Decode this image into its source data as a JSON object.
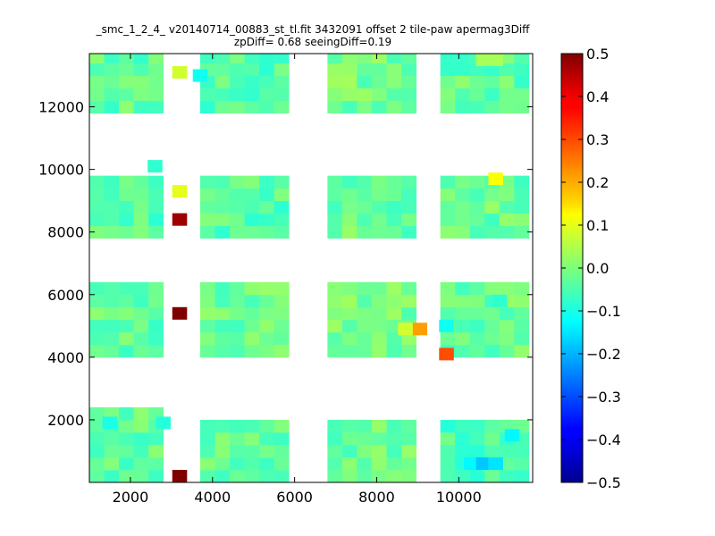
{
  "title_lines": [
    "_smc_1_2_4_ v20140714_00883_st_tl.fit 3432091 offset 2 tile-paw apermag3Diff",
    "zpDiff= 0.68 seeingDiff=0.19"
  ],
  "chart_data": {
    "type": "heatmap",
    "xlim": [
      1000,
      11800
    ],
    "ylim": [
      0,
      13700
    ],
    "xticks": [
      2000,
      4000,
      6000,
      8000,
      10000
    ],
    "yticks": [
      2000,
      4000,
      6000,
      8000,
      10000,
      12000
    ],
    "cell_size": [
      360,
      400
    ],
    "colorbar": {
      "colormap": "jet",
      "range": [
        -0.5,
        0.5
      ],
      "ticks": [
        0.5,
        0.4,
        0.3,
        0.2,
        0.1,
        0.0,
        -0.1,
        -0.2,
        -0.3,
        -0.4,
        -0.5
      ],
      "tick_labels": [
        "0.5",
        "0.4",
        "0.3",
        "0.2",
        "0.1",
        "0.0",
        "−0.1",
        "−0.2",
        "−0.3",
        "−0.4",
        "−0.5"
      ]
    },
    "blocks": [
      {
        "x0": 1000,
        "cols": 5,
        "y0": 0,
        "rows": 6,
        "value": -0.03
      },
      {
        "x0": 1000,
        "cols": 5,
        "y0": 4000,
        "rows": 6,
        "value": -0.03
      },
      {
        "x0": 1000,
        "cols": 5,
        "y0": 7800,
        "rows": 5,
        "value": -0.04
      },
      {
        "x0": 1000,
        "cols": 5,
        "y0": 11800,
        "rows": 5,
        "value": -0.03
      },
      {
        "x0": 3700,
        "cols": 6,
        "y0": 0,
        "rows": 5,
        "value": -0.02
      },
      {
        "x0": 3700,
        "cols": 6,
        "y0": 4000,
        "rows": 6,
        "value": -0.02
      },
      {
        "x0": 3700,
        "cols": 6,
        "y0": 7800,
        "rows": 5,
        "value": -0.04
      },
      {
        "x0": 3700,
        "cols": 6,
        "y0": 11800,
        "rows": 5,
        "value": -0.04
      },
      {
        "x0": 6800,
        "cols": 6,
        "y0": 0,
        "rows": 5,
        "value": -0.02
      },
      {
        "x0": 6800,
        "cols": 6,
        "y0": 4000,
        "rows": 6,
        "value": -0.01
      },
      {
        "x0": 6800,
        "cols": 6,
        "y0": 7800,
        "rows": 5,
        "value": -0.02
      },
      {
        "x0": 6800,
        "cols": 6,
        "y0": 11800,
        "rows": 6,
        "value": -0.01
      },
      {
        "x0": 9550,
        "cols": 6,
        "y0": 0,
        "rows": 5,
        "value": -0.05
      },
      {
        "x0": 9550,
        "cols": 6,
        "y0": 4000,
        "rows": 6,
        "value": -0.02
      },
      {
        "x0": 9550,
        "cols": 6,
        "y0": 7800,
        "rows": 5,
        "value": -0.02
      },
      {
        "x0": 9550,
        "cols": 6,
        "y0": 11800,
        "rows": 5,
        "value": -0.03
      }
    ],
    "notable_cells": [
      {
        "x": 3200,
        "y": 200,
        "value": 0.5
      },
      {
        "x": 3200,
        "y": 5400,
        "value": 0.5
      },
      {
        "x": 3200,
        "y": 8400,
        "value": 0.47
      },
      {
        "x": 3200,
        "y": 9300,
        "value": 0.1
      },
      {
        "x": 3200,
        "y": 13100,
        "value": 0.08
      },
      {
        "x": 2600,
        "y": 10100,
        "value": -0.08
      },
      {
        "x": 9700,
        "y": 4100,
        "value": 0.3
      },
      {
        "x": 9050,
        "y": 4900,
        "value": 0.22
      },
      {
        "x": 8700,
        "y": 4900,
        "value": 0.08
      },
      {
        "x": 10900,
        "y": 9700,
        "value": 0.12
      },
      {
        "x": 10600,
        "y": 13500,
        "value": 0.04
      },
      {
        "x": 10900,
        "y": 13500,
        "value": 0.04
      },
      {
        "x": 10300,
        "y": 600,
        "value": -0.13
      },
      {
        "x": 10600,
        "y": 600,
        "value": -0.18
      },
      {
        "x": 10900,
        "y": 600,
        "value": -0.15
      },
      {
        "x": 11300,
        "y": 1500,
        "value": -0.13
      },
      {
        "x": 1500,
        "y": 1900,
        "value": -0.1
      },
      {
        "x": 2800,
        "y": 1900,
        "value": -0.09
      },
      {
        "x": 3700,
        "y": 13000,
        "value": -0.11
      },
      {
        "x": 9700,
        "y": 5000,
        "value": -0.11
      },
      {
        "x": 11000,
        "y": 5800,
        "value": -0.08
      }
    ]
  }
}
